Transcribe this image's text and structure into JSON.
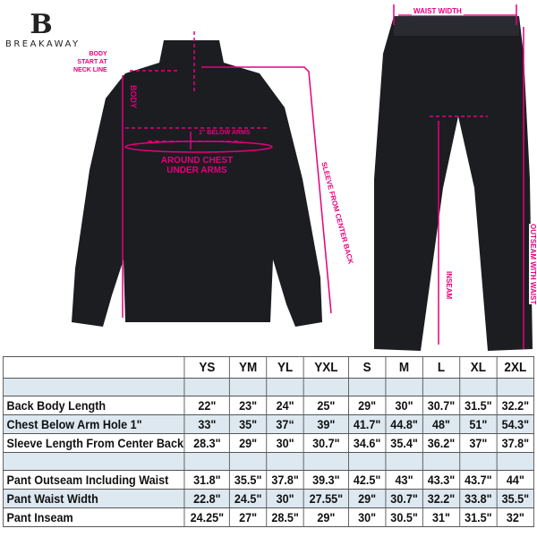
{
  "brand": {
    "name": "BREAKAWAY",
    "logo_letter": "B"
  },
  "annotations": {
    "body_start": [
      "BODY",
      "START AT",
      "NECK LINE"
    ],
    "body": "BODY",
    "below_arms": "1\" BELOW ARMS",
    "around_chest": [
      "AROUND CHEST",
      "UNDER ARMS"
    ],
    "sleeve": "SLEEVE FROM CENTER BACK",
    "waist_width": "WAIST WIDTH",
    "inseam": "INSEAM",
    "outseam": "OUTSEAM WITH WAIST"
  },
  "colors": {
    "accent": "#e6007e",
    "garment": "#1c1d21",
    "row_shade": "#dde8f0"
  },
  "table": {
    "sizes": [
      "YS",
      "YM",
      "YL",
      "YXL",
      "S",
      "M",
      "L",
      "XL",
      "2XL"
    ],
    "jacket_rows": [
      {
        "label": "Back Body Length",
        "values": [
          "22\"",
          "23\"",
          "24\"",
          "25\"",
          "29\"",
          "30\"",
          "30.7\"",
          "31.5\"",
          "32.2\""
        ]
      },
      {
        "label": "Chest Below Arm Hole 1\"",
        "values": [
          "33\"",
          "35\"",
          "37“",
          "39\"",
          "41.7\"",
          "44.8\"",
          "48\"",
          "51\"",
          "54.3\""
        ]
      },
      {
        "label": "Sleeve Length From Center Back",
        "values": [
          "28.3\"",
          "29\"",
          "30\"",
          "30.7\"",
          "34.6\"",
          "35.4\"",
          "36.2\"",
          "37\"",
          "37.8\""
        ]
      }
    ],
    "pant_rows": [
      {
        "label": "Pant Outseam Including Waist",
        "values": [
          "31.8\"",
          "35.5\"",
          "37.8\"",
          "39.3\"",
          "42.5\"",
          "43\"",
          "43.3\"",
          "43.7\"",
          "44\""
        ]
      },
      {
        "label": "Pant Waist Width",
        "values": [
          "22.8\"",
          "24.5\"",
          "30\"",
          "27.55\"",
          "29\"",
          "30.7\"",
          "32.2\"",
          "33.8\"",
          "35.5\""
        ]
      },
      {
        "label": "Pant Inseam",
        "values": [
          "24.25\"",
          "27\"",
          "28.5\"",
          "29\"",
          "30\"",
          "30.5\"",
          "31\"",
          "31.5\"",
          "32\""
        ]
      }
    ]
  }
}
